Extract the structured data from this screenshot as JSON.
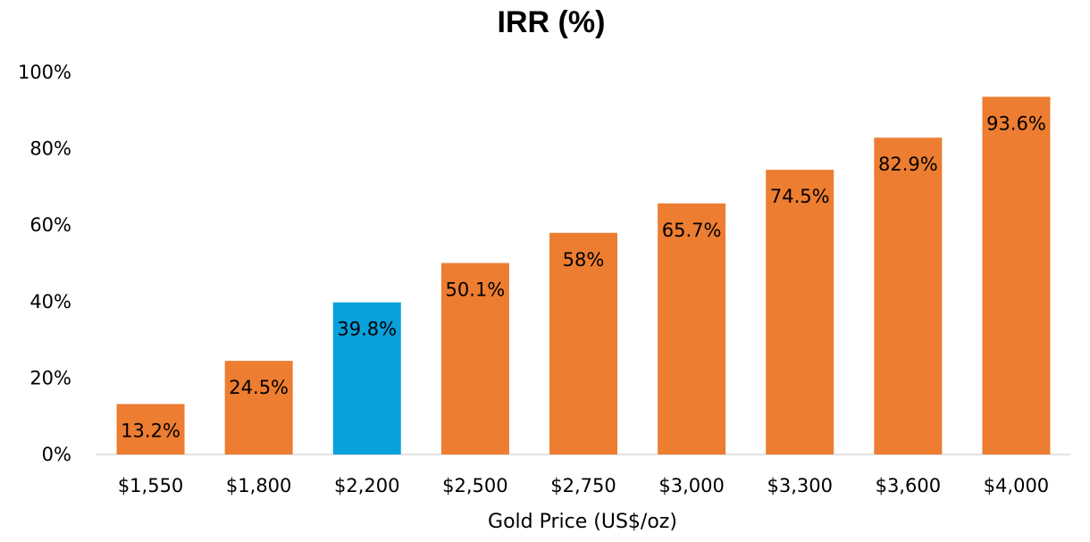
{
  "chart_data": {
    "type": "bar",
    "title": "IRR (%)",
    "xlabel": "Gold Price (US$/oz)",
    "ylabel": "",
    "categories": [
      "$1,550",
      "$1,800",
      "$2,200",
      "$2,500",
      "$2,750",
      "$3,000",
      "$3,300",
      "$3,600",
      "$4,000"
    ],
    "values": [
      13.2,
      24.5,
      39.8,
      50.1,
      58,
      65.7,
      74.5,
      82.9,
      93.6
    ],
    "data_labels": [
      "13.2%",
      "24.5%",
      "39.8%",
      "50.1%",
      "58%",
      "65.7%",
      "74.5%",
      "82.9%",
      "93.6%"
    ],
    "ylim": [
      0,
      100
    ],
    "yticks": [
      0,
      20,
      40,
      60,
      80,
      100
    ],
    "ytick_labels": [
      "0%",
      "20%",
      "40%",
      "60%",
      "80%",
      "100%"
    ],
    "grid": false,
    "legend": "none",
    "highlight_category": "$2,200",
    "colors": {
      "bar": "#ED7D31",
      "highlight": "#08A1DC",
      "axis": "#D9D9D9"
    }
  }
}
